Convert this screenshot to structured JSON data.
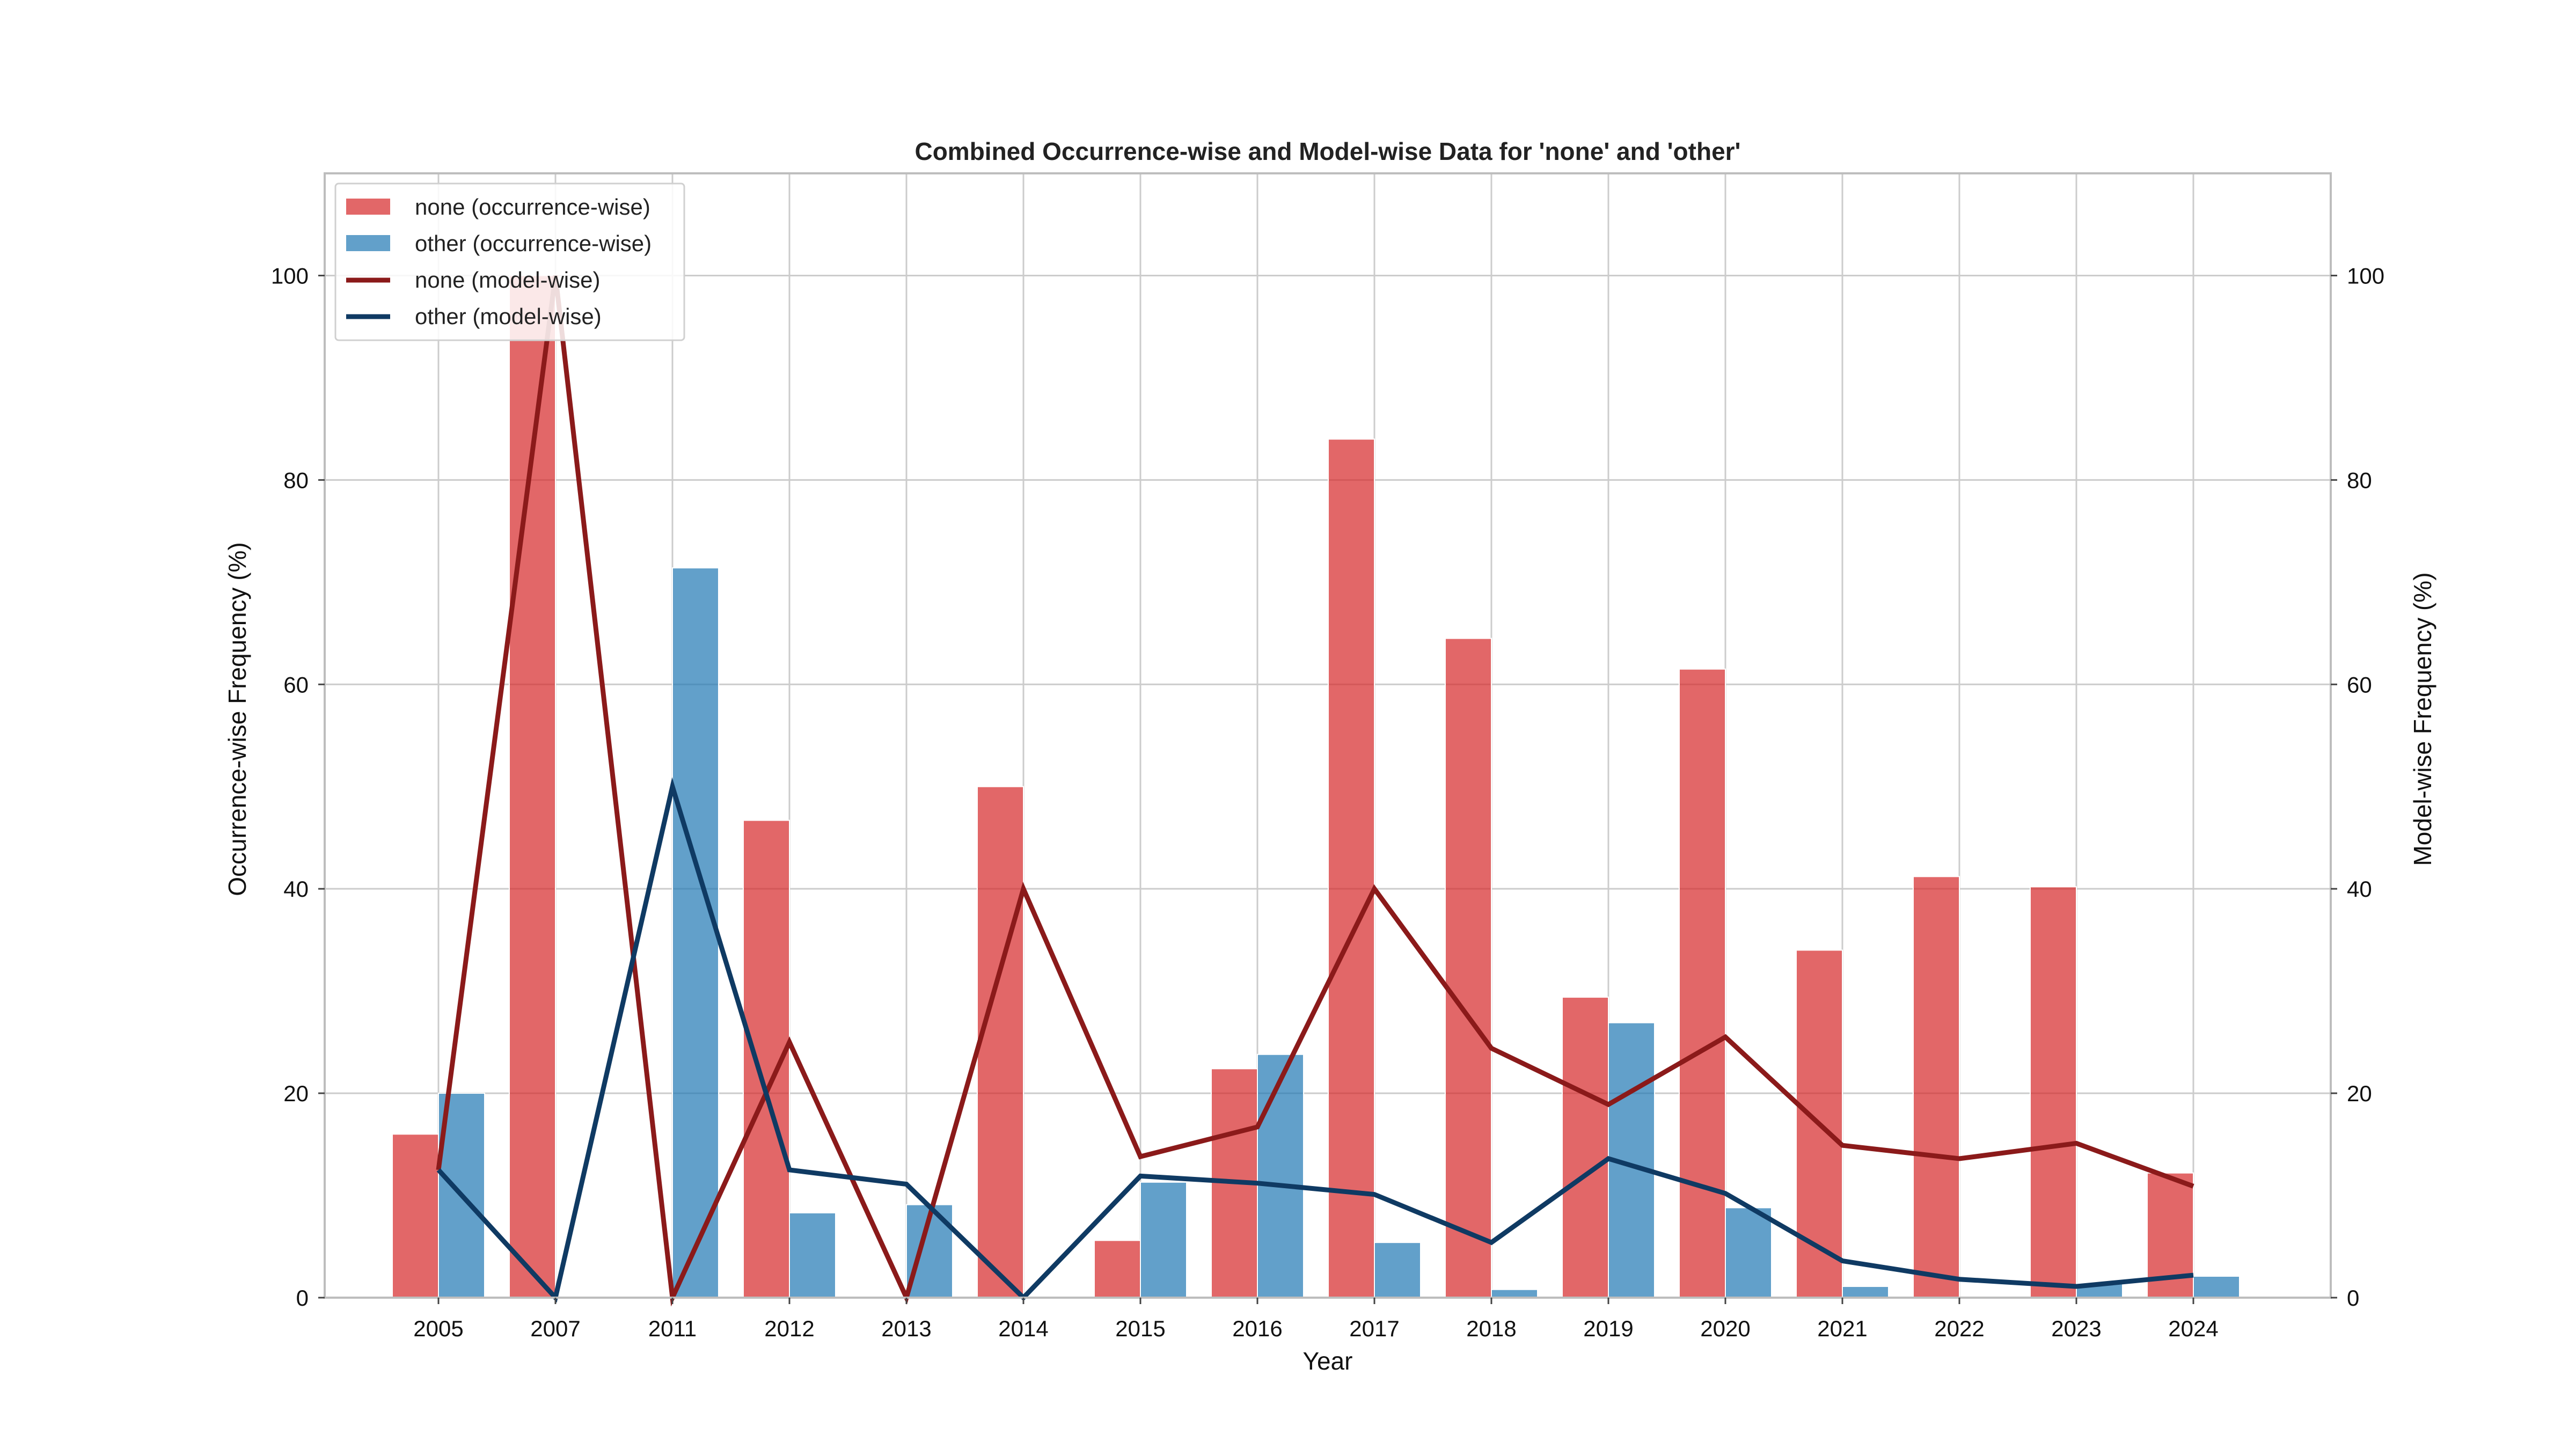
{
  "chart_data": {
    "type": "bar",
    "title": "Combined Occurrence-wise and Model-wise Data for 'none' and 'other'",
    "xlabel": "Year",
    "ylabel_left": "Occurrence-wise Frequency (%)",
    "ylabel_right": "Model-wise Frequency (%)",
    "categories": [
      "2005",
      "2007",
      "2011",
      "2012",
      "2013",
      "2014",
      "2015",
      "2016",
      "2017",
      "2018",
      "2019",
      "2020",
      "2021",
      "2022",
      "2023",
      "2024"
    ],
    "ylim": [
      0,
      110
    ],
    "yticks": [
      0,
      20,
      40,
      60,
      80,
      100
    ],
    "grid": true,
    "legend_position": "top-left",
    "series": [
      {
        "name": "none (occurrence-wise)",
        "kind": "bar",
        "axis": "left",
        "color": "#d62728",
        "values": [
          16.0,
          100.0,
          0.0,
          46.7,
          0.0,
          50.0,
          5.6,
          22.4,
          84.0,
          64.5,
          29.4,
          61.5,
          34.0,
          41.2,
          40.2,
          12.2
        ]
      },
      {
        "name": "other (occurrence-wise)",
        "kind": "bar",
        "axis": "left",
        "color": "#1f77b4",
        "values": [
          20.0,
          0.0,
          71.4,
          8.3,
          9.1,
          0.0,
          11.3,
          23.8,
          5.4,
          0.8,
          26.9,
          8.8,
          1.1,
          0.0,
          1.4,
          2.1
        ]
      },
      {
        "name": "none (model-wise)",
        "kind": "line",
        "axis": "right",
        "color": "#8b1a1a",
        "values": [
          12.5,
          100.0,
          0.0,
          25.0,
          0.0,
          40.0,
          13.8,
          16.7,
          40.0,
          24.4,
          18.9,
          25.5,
          14.9,
          13.6,
          15.1,
          10.9
        ]
      },
      {
        "name": "other (model-wise)",
        "kind": "line",
        "axis": "right",
        "color": "#0f3a63",
        "values": [
          12.5,
          0.0,
          50.0,
          12.5,
          11.1,
          0.0,
          11.9,
          11.2,
          10.1,
          5.4,
          13.6,
          10.2,
          3.6,
          1.8,
          1.1,
          2.2
        ]
      }
    ]
  }
}
